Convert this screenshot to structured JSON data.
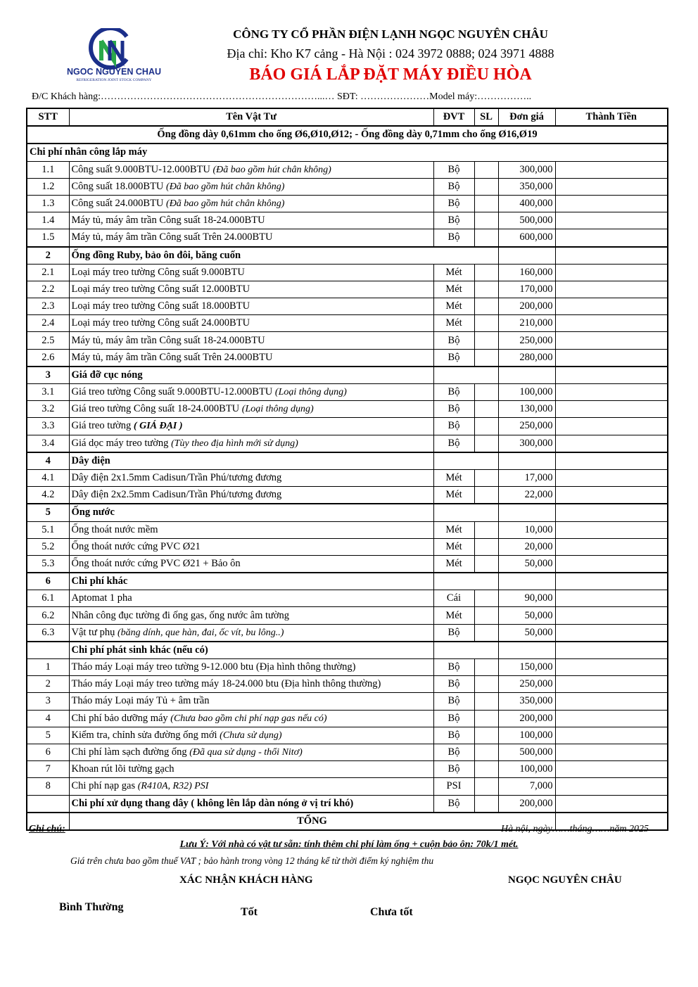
{
  "header": {
    "logo_text": "NGOC NGUYEN CHAU",
    "logo_sub": "REFRIGERATION JOINT STOCK COMPANY",
    "company": "CÔNG TY CỔ PHẦN ĐIỆN LẠNH NGỌC NGUYÊN CHÂU",
    "address": "Địa chỉ: Kho K7 cảng - Hà Nội : 024 3972 0888; 024 3971 4888",
    "title": "BÁO GIÁ  LẮP ĐẶT MÁY ĐIỀU HÒA",
    "customer_line": "Đ/C Khách hàng:…………………………………………………………...… SĐT: …………………Model máy:……………..",
    "colors": {
      "title": "#e00000",
      "logo_blue": "#1b2f8a",
      "logo_green": "#2aa84a"
    }
  },
  "table": {
    "columns": [
      "STT",
      "Tên Vật Tư",
      "ĐVT",
      "SL",
      "Đơn giá",
      "Thành Tiền"
    ],
    "note_row": "Ống đồng dày 0,61mm cho ống Ø6,Ø10,Ø12;  - Ống đồng dày 0,71mm cho ống Ø16,Ø19",
    "rows": [
      {
        "type": "section-full",
        "name": "Chi phí nhân công lắp máy"
      },
      {
        "stt": "1.1",
        "name": "Công suất 9.000BTU-12.000BTU ",
        "note": "(Đã bao gồm hút chân không)",
        "unit": "Bộ",
        "price": "300,000"
      },
      {
        "stt": "1.2",
        "name": "Công suất 18.000BTU ",
        "note": "(Đã bao gồm hút chân không)",
        "unit": "Bộ",
        "price": "350,000"
      },
      {
        "stt": "1.3",
        "name": "Công suất 24.000BTU ",
        "note": "(Đã bao gồm hút chân không)",
        "unit": "Bộ",
        "price": "400,000"
      },
      {
        "stt": "1.4",
        "name": "Máy tủ, máy âm trần Công suất 18-24.000BTU",
        "unit": "Bộ",
        "price": "500,000"
      },
      {
        "stt": "1.5",
        "name": "Máy tủ, máy âm trần Công suất Trên 24.000BTU",
        "unit": "Bộ",
        "price": "600,000"
      },
      {
        "type": "section-wide",
        "stt": "2",
        "name": "Ống đồng Ruby, bảo ôn đôi, băng cuốn"
      },
      {
        "stt": "2.1",
        "name": "Loại máy treo tường Công suất 9.000BTU",
        "unit": "Mét",
        "price": "160,000"
      },
      {
        "stt": "2.2",
        "name": "Loại máy treo tường Công suất 12.000BTU",
        "unit": "Mét",
        "price": "170,000"
      },
      {
        "stt": "2.3",
        "name": "Loại máy treo tường Công suất 18.000BTU",
        "unit": "Mét",
        "price": "200,000"
      },
      {
        "stt": "2.4",
        "name": "Loại máy treo tường Công suất 24.000BTU",
        "unit": "Mét",
        "price": "210,000"
      },
      {
        "stt": "2.5",
        "name": "Máy tủ, máy âm trần Công suất 18-24.000BTU",
        "unit": "Bộ",
        "price": "250,000"
      },
      {
        "stt": "2.6",
        "name": "Máy tủ, máy âm trần Công suất Trên 24.000BTU",
        "unit": "Bộ",
        "price": "280,000"
      },
      {
        "type": "section",
        "stt": "3",
        "name": "Giá đỡ cục nóng"
      },
      {
        "stt": "3.1",
        "name": "Giá treo tường Công suất 9.000BTU-12.000BTU ",
        "note": "(Loại thông dụng)",
        "unit": "Bộ",
        "price": "100,000"
      },
      {
        "stt": "3.2",
        "name": "Giá treo tường Công suất 18-24.000BTU ",
        "note": "(Loại thông dụng)",
        "unit": "Bộ",
        "price": "130,000"
      },
      {
        "stt": "3.3",
        "name": "Giá treo tường ",
        "note": "( GIÁ ĐẠI )",
        "note_bold": true,
        "unit": "Bộ",
        "price": "250,000"
      },
      {
        "stt": "3.4",
        "name": "Giá dọc máy treo tường ",
        "note": "(Tùy theo địa hình mới sử dụng)",
        "unit": "Bộ",
        "price": "300,000"
      },
      {
        "type": "section",
        "stt": "4",
        "name": "Dây điện"
      },
      {
        "stt": "4.1",
        "name": "Dây điện 2x1.5mm Cadisun/Trần Phú/tương đương",
        "unit": "Mét",
        "price": "17,000"
      },
      {
        "stt": "4.2",
        "name": "Dây điện 2x2.5mm Cadisun/Trần Phú/tương đương",
        "unit": "Mét",
        "price": "22,000"
      },
      {
        "type": "section",
        "stt": "5",
        "name": "Ống nước"
      },
      {
        "stt": "5.1",
        "name": "Ống thoát nước mềm",
        "unit": "Mét",
        "price": "10,000"
      },
      {
        "stt": "5.2",
        "name": "Ống thoát nước cứng PVC Ø21",
        "unit": "Mét",
        "price": "20,000"
      },
      {
        "stt": "5.3",
        "name": "Ống thoát nước cứng PVC Ø21 + Bảo ôn",
        "unit": "Mét",
        "price": "50,000"
      },
      {
        "type": "section",
        "stt": "6",
        "name": "Chi phí khác"
      },
      {
        "stt": "6.1",
        "name": "Aptomat 1 pha",
        "unit": "Cái",
        "price": "90,000"
      },
      {
        "stt": "6.2",
        "name": "Nhân công đục tường đi ống gas, ống nước âm tường",
        "unit": "Mét",
        "price": "50,000"
      },
      {
        "stt": "6.3",
        "name": "Vật tư phụ ",
        "note": "(băng dính, que hàn, đai, ốc vít, bu lông..)",
        "unit": "Bộ",
        "price": "50,000"
      },
      {
        "type": "section",
        "stt": "",
        "name": "Chi phí phát sinh khác (nếu có)"
      },
      {
        "stt": "1",
        "name": "Tháo máy Loại máy treo tường 9-12.000  btu (Địa hình thông thường)",
        "unit": "Bộ",
        "price": "150,000"
      },
      {
        "stt": "2",
        "name": "Tháo máy Loại máy treo tường máy 18-24.000 btu (Địa hình thông thường)",
        "unit": "Bộ",
        "price": "250,000"
      },
      {
        "stt": "3",
        "name": "Tháo máy Loại máy Tủ + âm trần",
        "unit": "Bộ",
        "price": "350,000"
      },
      {
        "stt": "4",
        "name": "Chi phí bảo dưỡng máy ",
        "note": "(Chưa bao gồm chi phí nạp gas nếu có)",
        "unit": "Bộ",
        "price": "200,000"
      },
      {
        "stt": "5",
        "name": "Kiểm tra, chỉnh sửa đường ống mới ",
        "note": "(Chưa sử dụng)",
        "unit": "Bộ",
        "price": "100,000"
      },
      {
        "stt": "6",
        "name": "Chi phí làm sạch đường ống ",
        "note": "(Đã qua sử dụng - thổi Nitơ)",
        "unit": "Bộ",
        "price": "500,000"
      },
      {
        "stt": "7",
        "name": "Khoan rút lõi tường gạch",
        "unit": "Bộ",
        "price": "100,000"
      },
      {
        "stt": "8",
        "name": "Chi phí nạp gas ",
        "note": "(R410A, R32) PSI",
        "unit": "PSI",
        "price": "7,000"
      },
      {
        "stt": "",
        "name": "Chi phí xử dụng thang dây ( không lên lắp dàn nóng ở vị trí khó)",
        "bold": true,
        "unit": "Bộ",
        "price": "200,000"
      }
    ],
    "total_label": "TỔNG"
  },
  "footer": {
    "ghi_chu": "Ghi chú:",
    "date": "Hà nội, ngày……tháng……năm 2025",
    "luu_y": "Lưu Ý: Với nhà có vật tư sẵn:  tính thêm chi phí làm ống + cuộn bảo ôn: 70k/1 mét.",
    "vat": "Giá trên chưa bao gồm thuế VAT ; bảo hành trong vòng 12 tháng kể từ thời điểm ký nghiệm thu",
    "confirm": "XÁC NHẬN KHÁCH HÀNG",
    "company_sign": "NGỌC NGUYÊN CHÂU",
    "options": [
      "Bình Thường",
      "Tốt",
      "Chưa tốt"
    ]
  }
}
